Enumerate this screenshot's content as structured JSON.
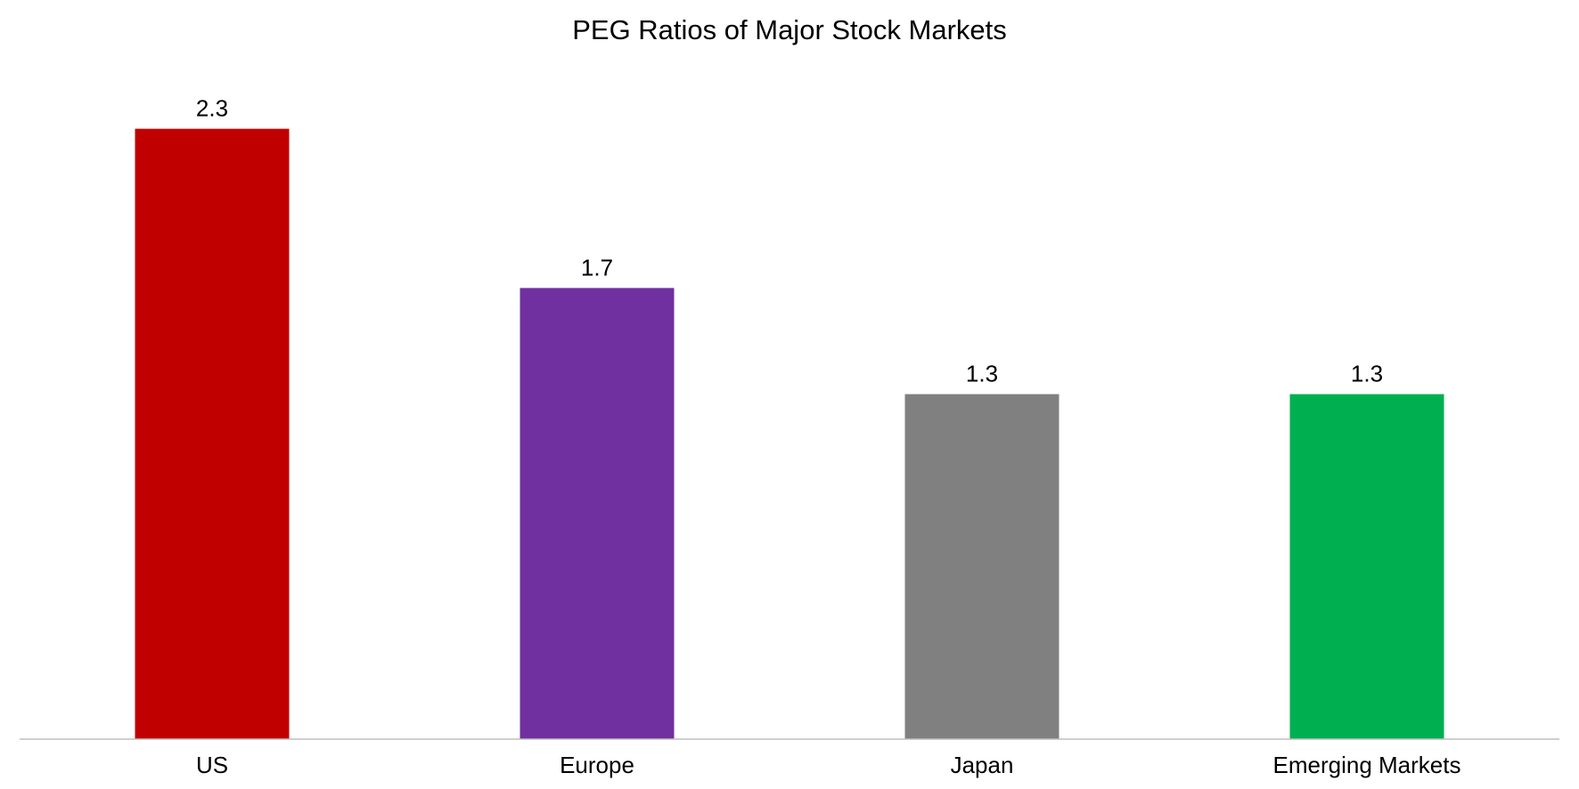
{
  "chart_data": {
    "type": "bar",
    "title": "PEG Ratios of Major Stock Markets",
    "xlabel": "",
    "ylabel": "",
    "categories": [
      "US",
      "Europe",
      "Japan",
      "Emerging Markets"
    ],
    "values": [
      2.3,
      1.7,
      1.3,
      1.3
    ],
    "value_labels": [
      "2.3",
      "1.7",
      "1.3",
      "1.3"
    ],
    "bar_colors": [
      "#C00000",
      "#7030A0",
      "#808080",
      "#00B050"
    ],
    "ylim": [
      0,
      2.6
    ],
    "grid": false,
    "legend": "none"
  }
}
